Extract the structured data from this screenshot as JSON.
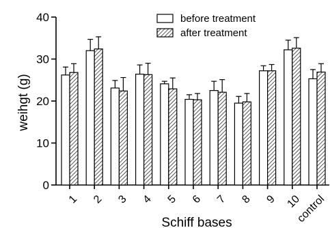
{
  "chart_data": {
    "type": "bar",
    "xlabel": "Schiff bases",
    "ylabel": "weihgt (g)",
    "ylim": [
      0,
      40
    ],
    "yticks": [
      0,
      10,
      20,
      30,
      40
    ],
    "categories": [
      "1",
      "2",
      "3",
      "4",
      "5",
      "6",
      "7",
      "8",
      "9",
      "10",
      "control"
    ],
    "series": [
      {
        "name": "before treatment",
        "pattern": "solid",
        "fill": "#ffffff",
        "values": [
          26.2,
          32.0,
          23.1,
          26.4,
          24.1,
          20.4,
          22.5,
          19.5,
          27.2,
          32.2,
          25.3
        ],
        "errors": [
          1.9,
          2.7,
          1.8,
          2.2,
          0.6,
          1.1,
          2.2,
          1.6,
          1.2,
          2.3,
          2.2
        ]
      },
      {
        "name": "after treatment",
        "pattern": "hatched",
        "fill": "#ffffff",
        "values": [
          26.8,
          32.4,
          22.4,
          26.3,
          22.9,
          20.3,
          22.1,
          19.8,
          27.2,
          32.6,
          26.9
        ],
        "errors": [
          2.1,
          2.9,
          3.2,
          2.7,
          2.6,
          1.5,
          3.0,
          2.0,
          1.5,
          2.5,
          2.0
        ]
      }
    ],
    "legend": {
      "placement": "top-right"
    },
    "grid": false
  }
}
